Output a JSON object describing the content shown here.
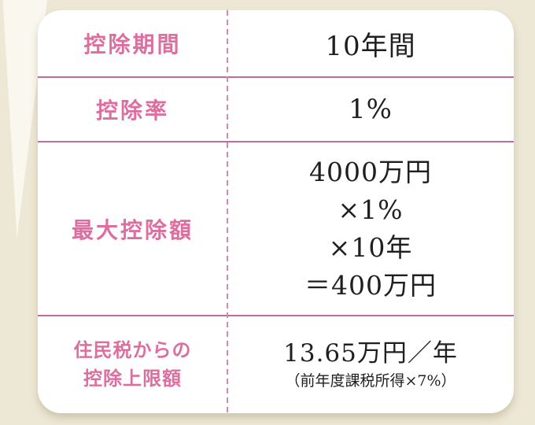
{
  "colors": {
    "background": "#EDE7D5",
    "panel": "#FFFFFF",
    "accent_pink_text": "#DC6F9F",
    "divider_pink": "#C06C9C",
    "value_text_dark": "#1F1F1F"
  },
  "table": {
    "rows": [
      {
        "label": "控除期間",
        "value": "10年間"
      },
      {
        "label": "控除率",
        "value": "1%"
      },
      {
        "label": "最大控除額",
        "value_lines": [
          "4000万円",
          "×1%",
          "×10年",
          "＝400万円"
        ]
      },
      {
        "label_lines": [
          "住民税からの",
          "控除上限額"
        ],
        "value_main": "13.65万円／年",
        "value_note": "（前年度課税所得×7%）"
      }
    ]
  },
  "chart_data": {
    "type": "table",
    "rows": [
      [
        "控除期間",
        "10年間"
      ],
      [
        "控除率",
        "1%"
      ],
      [
        "最大控除額",
        "4000万円 ×1% ×10年 ＝400万円"
      ],
      [
        "住民税からの控除上限額",
        "13.65万円／年（前年度課税所得×7%）"
      ]
    ]
  }
}
